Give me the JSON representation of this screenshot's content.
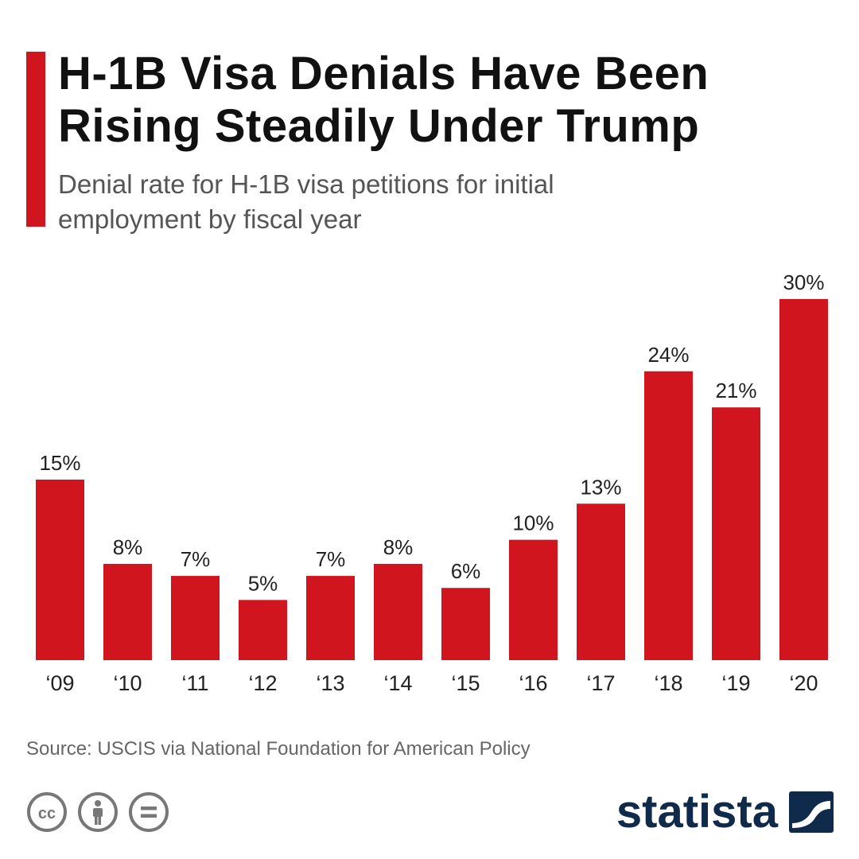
{
  "header": {
    "title": "H-1B Visa Denials Have Been Rising Steadily Under Trump",
    "subtitle": "Denial rate for H-1B visa petitions for initial employment by fiscal year"
  },
  "footer": {
    "source": "Source: USCIS via National Foundation for American Policy",
    "license_icons": [
      "creative-commons-icon",
      "attribution-icon",
      "no-derivatives-icon"
    ],
    "brand": "statista"
  },
  "colors": {
    "accent": "#d0151f",
    "bar": "#d0151f",
    "brand": "#0f2a4a"
  },
  "chart_data": {
    "type": "bar",
    "categories": [
      "‘09",
      "‘10",
      "‘11",
      "‘12",
      "‘13",
      "‘14",
      "‘15",
      "‘16",
      "‘17",
      "‘18",
      "‘19",
      "‘20"
    ],
    "values": [
      15,
      8,
      7,
      5,
      7,
      8,
      6,
      10,
      13,
      24,
      21,
      30
    ],
    "value_labels": [
      "15%",
      "8%",
      "7%",
      "5%",
      "7%",
      "8%",
      "6%",
      "10%",
      "13%",
      "24%",
      "21%",
      "30%"
    ],
    "ylim": [
      0,
      30
    ],
    "grid": false,
    "legend": "none"
  }
}
